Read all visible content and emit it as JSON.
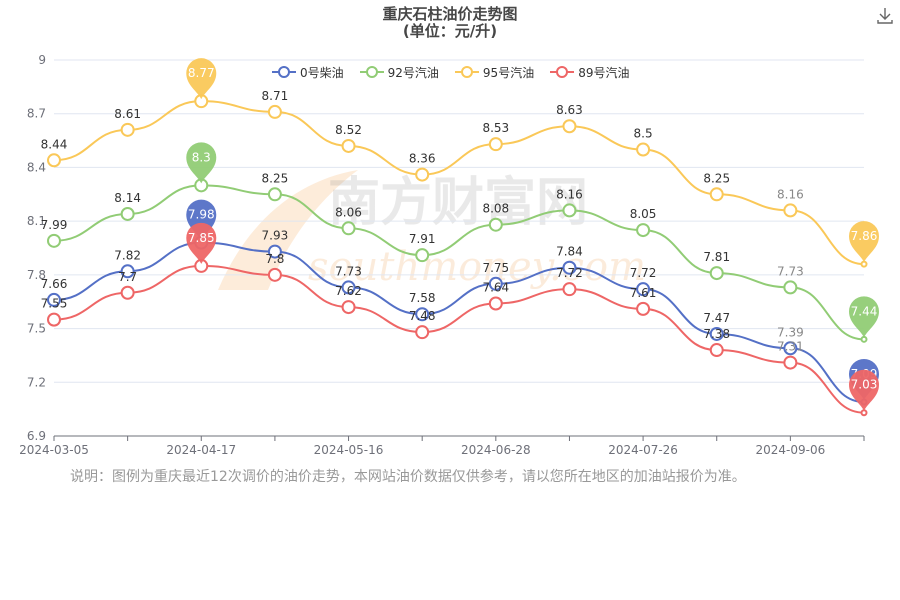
{
  "page": {
    "title": "重庆石柱油价走势图",
    "subtitle": "(单位：元/升)",
    "note": "说明：图例为重庆最近12次调价的油价走势，本网站油价数据仅供参考，请以您所在地区的加油站报价为准。",
    "download_icon": "download-icon",
    "watermark": {
      "cn": "南方财富网",
      "en": "southmoney.com"
    }
  },
  "chart_data": {
    "type": "line",
    "title": "重庆石柱油价走势图",
    "subtitle": "(单位：元/升)",
    "x_tick_labels": [
      "2024-03-05",
      "2024-04-17",
      "2024-05-16",
      "2024-06-28",
      "2024-07-26",
      "2024-09-06"
    ],
    "y_tick_labels": [
      "6.9",
      "7.2",
      "7.5",
      "7.8",
      "8.1",
      "8.4",
      "8.7",
      "9"
    ],
    "ylim": [
      6.9,
      9
    ],
    "grid": "y",
    "legend_position": "top",
    "series": [
      {
        "name": "0号柴油",
        "color": "#5470c6",
        "values": [
          7.66,
          7.82,
          7.98,
          7.93,
          7.73,
          7.58,
          7.75,
          7.84,
          7.72,
          7.47,
          7.39,
          7.09
        ],
        "max_marker": "7.98",
        "min_marker": "7.09"
      },
      {
        "name": "92号汽油",
        "color": "#91cc75",
        "values": [
          7.99,
          8.14,
          8.3,
          8.25,
          8.06,
          7.91,
          8.08,
          8.16,
          8.05,
          7.81,
          7.73,
          7.44
        ],
        "max_marker": "8.3",
        "min_marker": "7.44"
      },
      {
        "name": "95号汽油",
        "color": "#fac858",
        "values": [
          8.44,
          8.61,
          8.77,
          8.71,
          8.52,
          8.36,
          8.53,
          8.63,
          8.5,
          8.25,
          8.16,
          7.86
        ],
        "max_marker": "8.77",
        "min_marker": "7.86"
      },
      {
        "name": "89号汽油",
        "color": "#ee6666",
        "values": [
          7.55,
          7.7,
          7.85,
          7.8,
          7.62,
          7.48,
          7.64,
          7.72,
          7.61,
          7.38,
          7.31,
          7.03
        ],
        "max_marker": "7.85",
        "min_marker": "7.03"
      }
    ]
  }
}
